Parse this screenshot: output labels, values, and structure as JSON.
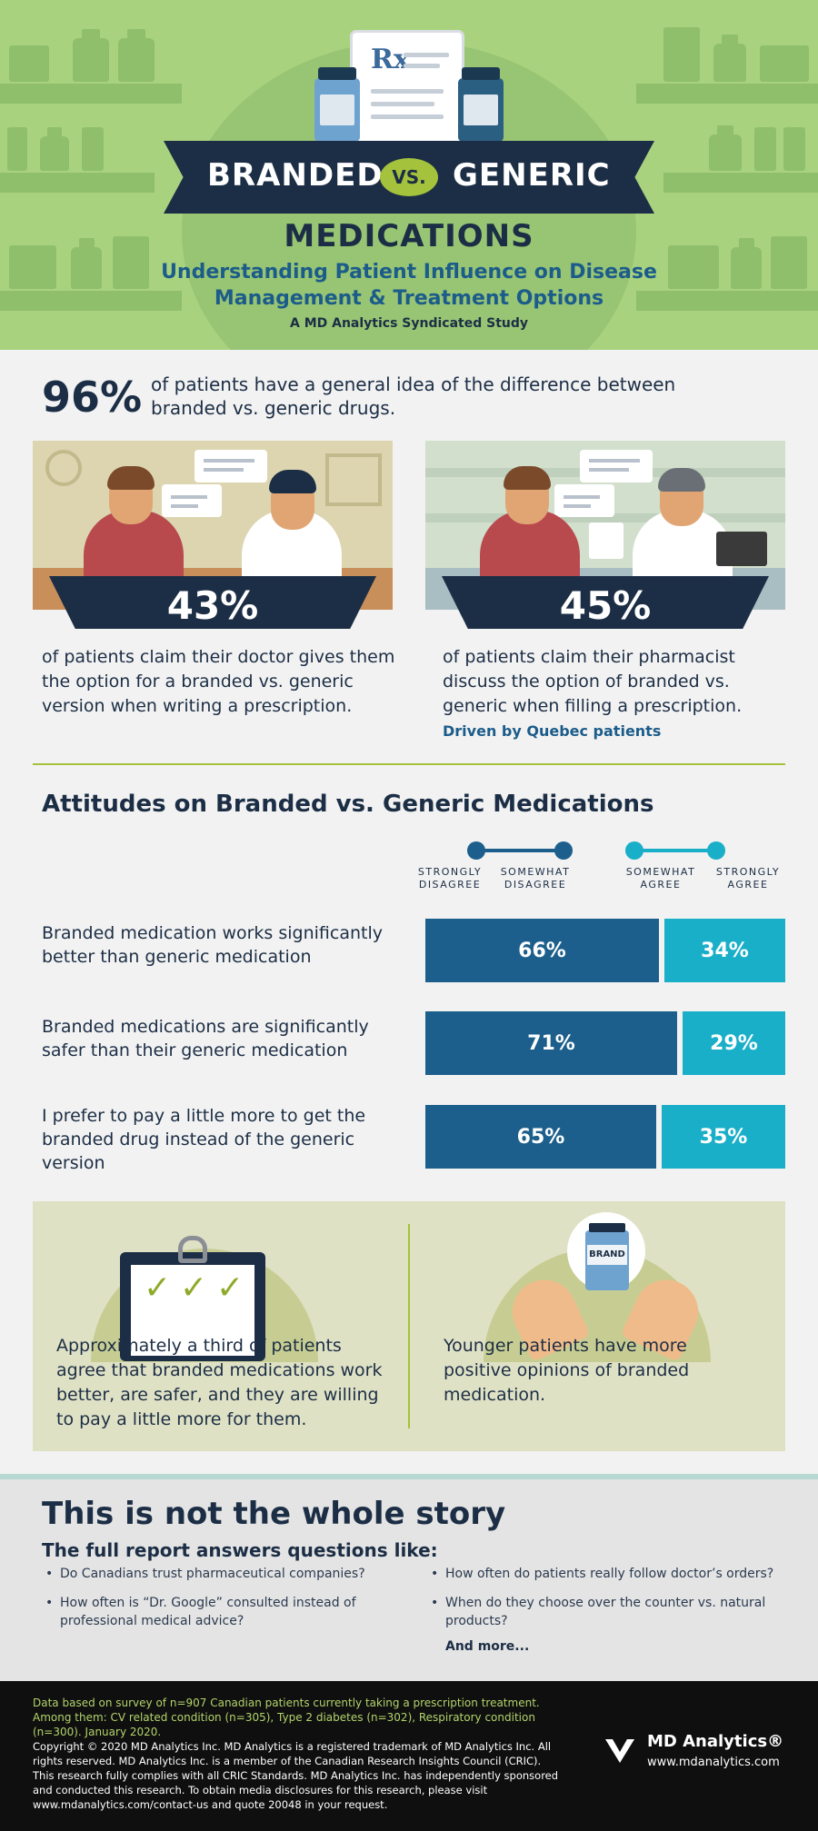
{
  "header": {
    "branded": "BRANDED",
    "vs": "VS.",
    "generic": "GENERIC",
    "medications": "MEDICATIONS",
    "subtitle_line1": "Understanding Patient Influence on Disease",
    "subtitle_line2": "Management & Treatment Options",
    "study": "A MD Analytics Syndicated Study",
    "rx_symbol": "Rx"
  },
  "stat96": {
    "value": "96%",
    "text": "of patients have a general idea of the difference between branded vs. generic drugs."
  },
  "doctor": {
    "value": "43%",
    "caption": "of patients claim their doctor gives them the option for a branded vs. generic version when writing a prescription."
  },
  "pharmacist": {
    "value": "45%",
    "caption": "of patients claim their pharmacist discuss the option of branded vs. generic when filling a prescription.",
    "note": "Driven by Quebec patients"
  },
  "attitudes": {
    "title": "Attitudes on Branded vs. Generic Medications",
    "legend": {
      "strongly_disagree": "STRONGLY DISAGREE",
      "somewhat_disagree": "SOMEWHAT DISAGREE",
      "somewhat_agree": "SOMEWHAT AGREE",
      "strongly_agree": "STRONGLY AGREE"
    },
    "rows": [
      {
        "label": "Branded medication works significantly better than generic medication",
        "disagree": "66%",
        "agree": "34%",
        "disagree_value": 66,
        "agree_value": 34
      },
      {
        "label": "Branded medications are significantly safer than their generic medication",
        "disagree": "71%",
        "agree": "29%",
        "disagree_value": 71,
        "agree_value": 29
      },
      {
        "label": "I prefer to pay a little more to get the branded drug instead of the generic version",
        "disagree": "65%",
        "agree": "35%",
        "disagree_value": 65,
        "agree_value": 35
      }
    ],
    "colors": {
      "disagree": "#1d5f8c",
      "agree": "#1aafc8"
    }
  },
  "callouts": {
    "left": "Approximately a third of patients agree that branded medications work better, are safer, and they are willing to pay a little more for them.",
    "right": "Younger patients have more positive opinions of branded medication.",
    "brand_label": "BRAND"
  },
  "story": {
    "title": "This is not the whole story",
    "subtitle": "The full report answers questions like:",
    "questions_left": [
      "Do Canadians trust pharmaceutical companies?",
      "How often is “Dr. Google” consulted instead of professional medical advice?"
    ],
    "questions_right": [
      "How often do patients really follow doctor’s orders?",
      "When do they choose over the counter vs. natural products?"
    ],
    "more": "And more..."
  },
  "footer": {
    "survey": "Data based on survey of n=907 Canadian patients currently taking a prescription treatment. Among them: CV related condition (n=305), Type 2 diabetes (n=302), Respiratory condition (n=300). January 2020.",
    "copyright": "Copyright © 2020 MD Analytics Inc. MD Analytics is a registered trademark of MD Analytics Inc. All rights reserved. MD Analytics Inc. is a member of the Canadian Research Insights Council (CRIC). This research fully complies with all CRIC Standards. MD Analytics Inc. has independently sponsored and conducted this research. To obtain media disclosures for this research, please visit www.mdanalytics.com/contact-us and quote 20048 in your request.",
    "logo_name": "MD Analytics®",
    "logo_url": "www.mdanalytics.com"
  }
}
